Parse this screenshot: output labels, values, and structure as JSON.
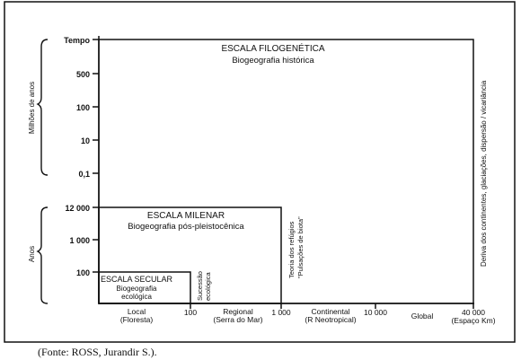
{
  "y_axis": {
    "time_labels": [
      "Tempo",
      "500",
      "100",
      "10",
      "0,1"
    ],
    "year_labels": [
      "12 000",
      "1 000",
      "100"
    ],
    "group_millions": "Milhões de anos",
    "group_years": "Anos"
  },
  "x_axis": {
    "labels": [
      {
        "line1": "Local",
        "line2": "(Floresta)"
      },
      {
        "line1": "100",
        "line2": ""
      },
      {
        "line1": "Regional",
        "line2": "(Serra do Mar)"
      },
      {
        "line1": "1 000",
        "line2": ""
      },
      {
        "line1": "Continental",
        "line2": "(R  Neotropical)"
      },
      {
        "line1": "10 000",
        "line2": ""
      },
      {
        "line1": "Global",
        "line2": ""
      },
      {
        "line1": "40 000",
        "line2": "(Espaço Km)"
      }
    ]
  },
  "scales": {
    "filogenetica": {
      "title": "ESCALA FILOGENÉTICA",
      "subtitle": "Biogeografia histórica"
    },
    "milenar": {
      "title": "ESCALA MILENAR",
      "subtitle": "Biogeografia pós-pleistocênica"
    },
    "secular": {
      "title": "ESCALA SECULAR",
      "subtitle_line1": "Biogeografia",
      "subtitle_line2": "ecológica"
    }
  },
  "vertical_notes": {
    "sucessao": {
      "line1": "Sucessão",
      "line2": "ecológica"
    },
    "refugios": {
      "line1": "Teoria dos refúgios",
      "line2": "\"Pulsações de biota\""
    },
    "deriva": "Deriva dos continentes, glaciações, dispersão / vicariância"
  },
  "caption": "(Fonte: ROSS, Jurandir S.)."
}
